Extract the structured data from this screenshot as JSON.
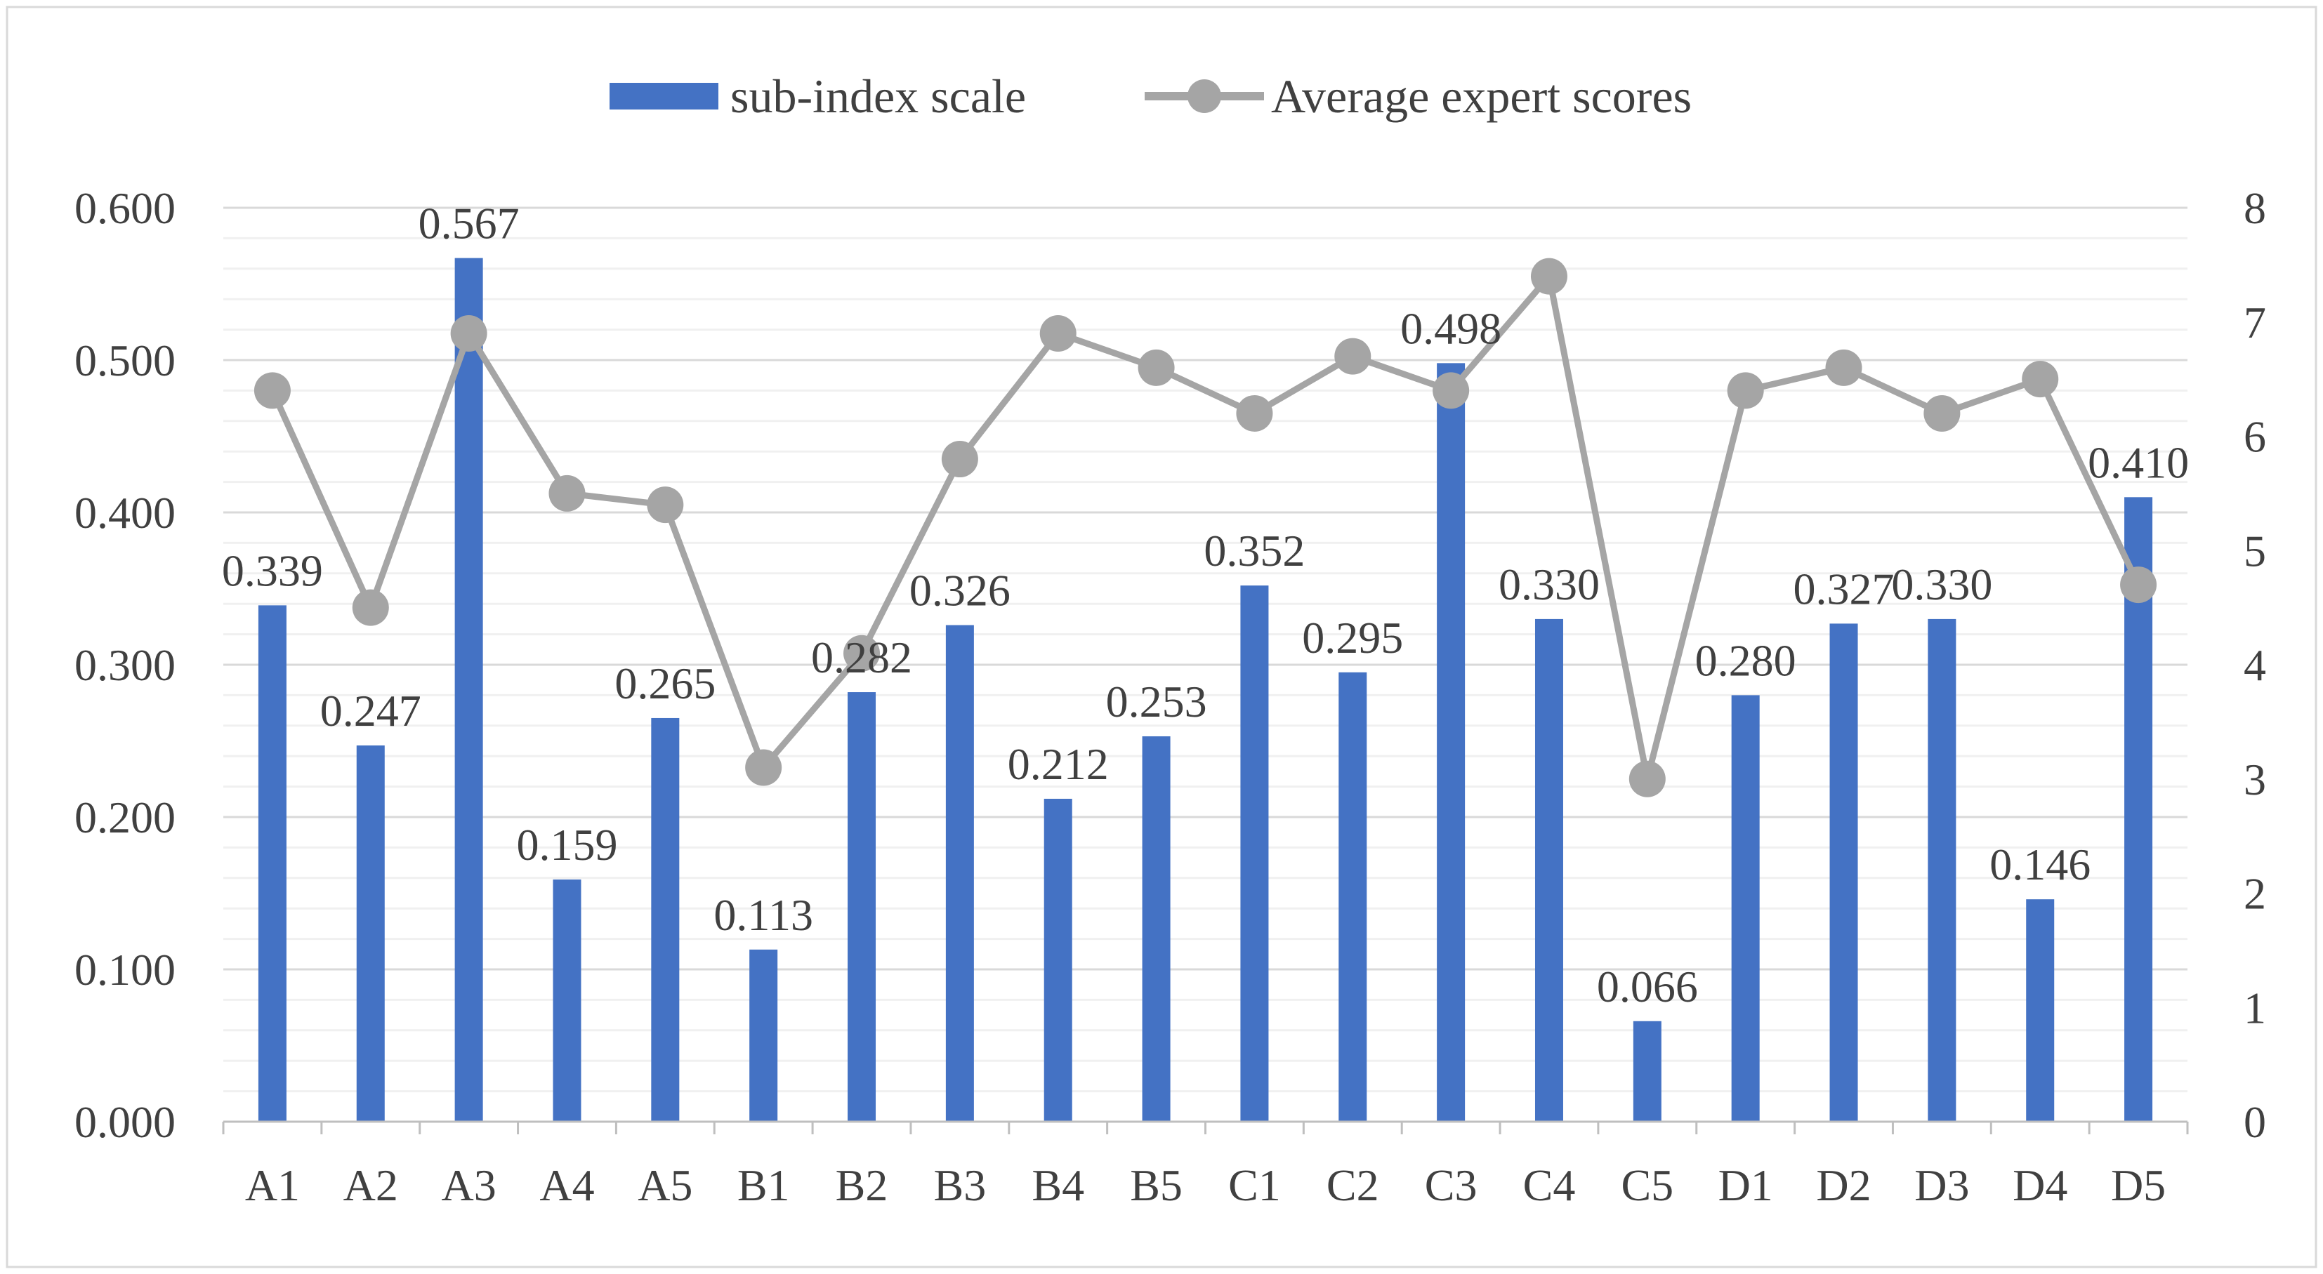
{
  "chart_data": {
    "type": "bar+line",
    "categories": [
      "A1",
      "A2",
      "A3",
      "A4",
      "A5",
      "B1",
      "B2",
      "B3",
      "B4",
      "B5",
      "C1",
      "C2",
      "C3",
      "C4",
      "C5",
      "D1",
      "D2",
      "D3",
      "D4",
      "D5"
    ],
    "series": [
      {
        "name": "sub-index scale",
        "type": "bar",
        "axis": "left",
        "color": "#4472C4",
        "values": [
          0.339,
          0.247,
          0.567,
          0.159,
          0.265,
          0.113,
          0.282,
          0.326,
          0.212,
          0.253,
          0.352,
          0.295,
          0.498,
          0.33,
          0.066,
          0.28,
          0.327,
          0.33,
          0.146,
          0.41
        ],
        "labels": [
          "0.339",
          "0.247",
          "0.567",
          "0.159",
          "0.265",
          "0.113",
          "0.282",
          "0.326",
          "0.212",
          "0.253",
          "0.352",
          "0.295",
          "0.498",
          "0.330",
          "0.066",
          "0.280",
          "0.327",
          "0.330",
          "0.146",
          "0.410"
        ]
      },
      {
        "name": "Average expert scores",
        "type": "line",
        "axis": "right",
        "color": "#A5A5A5",
        "values": [
          6.4,
          4.5,
          6.9,
          5.5,
          5.4,
          3.1,
          4.1,
          5.8,
          6.9,
          6.6,
          6.2,
          6.7,
          6.4,
          7.4,
          3.0,
          6.4,
          6.6,
          6.2,
          6.5,
          4.7
        ]
      }
    ],
    "y_left": {
      "ylim": [
        0,
        0.6
      ],
      "ticks": [
        0,
        0.1,
        0.2,
        0.3,
        0.4,
        0.5,
        0.6
      ],
      "tick_labels": [
        "0.000",
        "0.100",
        "0.200",
        "0.300",
        "0.400",
        "0.500",
        "0.600"
      ],
      "minor_step": 0.02
    },
    "y_right": {
      "ylim": [
        0,
        8
      ],
      "ticks": [
        0,
        1,
        2,
        3,
        4,
        5,
        6,
        7,
        8
      ],
      "tick_labels": [
        "0",
        "1",
        "2",
        "3",
        "4",
        "5",
        "6",
        "7",
        "8"
      ]
    },
    "title": "",
    "xlabel": "",
    "ylabel": "",
    "grid": true,
    "legend_position": "top-center"
  }
}
